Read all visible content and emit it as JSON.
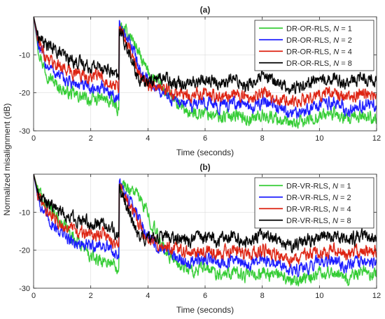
{
  "shared_ylabel": "Normalized misalignment (dB)",
  "chart_data": [
    {
      "type": "line",
      "title": "(a)",
      "xlabel": "Time (seconds)",
      "ylabel": "Normalized misalignment (dB)",
      "xlim": [
        0,
        12
      ],
      "ylim": [
        -30,
        0
      ],
      "xticks": [
        0,
        2,
        4,
        6,
        8,
        10,
        12
      ],
      "yticks": [
        -30,
        -20,
        -10
      ],
      "grid": true,
      "legend_position": "top-right",
      "series": [
        {
          "name": "DR-OR-RLS, N = 1",
          "label_prefix": "DR-OR-RLS, ",
          "label_var": "N",
          "label_value": " = 1",
          "color": "#33cc33",
          "x": [
            0,
            0.15,
            0.4,
            0.8,
            1.2,
            1.6,
            2.0,
            2.4,
            2.8,
            2.98,
            3.0,
            3.2,
            3.4,
            3.6,
            3.8,
            4.0,
            4.5,
            5.0,
            5.5,
            6.0,
            6.5,
            7.0,
            7.5,
            8.0,
            8.5,
            9.0,
            9.5,
            10.0,
            10.5,
            11.0,
            11.5,
            12.0
          ],
          "y": [
            0,
            -8,
            -14,
            -18,
            -20,
            -21,
            -22,
            -21.5,
            -23,
            -24.5,
            -3,
            -4,
            -5,
            -8,
            -12,
            -14.5,
            -19,
            -23,
            -25.5,
            -25,
            -26.5,
            -25.5,
            -27,
            -26,
            -26.5,
            -28.5,
            -27.5,
            -26,
            -25.5,
            -27.5,
            -26,
            -26.5
          ]
        },
        {
          "name": "DR-OR-RLS, N = 2",
          "label_prefix": "DR-OR-RLS, ",
          "label_var": "N",
          "label_value": " = 2",
          "color": "#1a1aff",
          "x": [
            0,
            0.15,
            0.4,
            0.8,
            1.2,
            1.6,
            2.0,
            2.4,
            2.8,
            2.98,
            3.0,
            3.2,
            3.4,
            3.6,
            3.8,
            4.0,
            4.5,
            5.0,
            5.5,
            6.0,
            6.5,
            7.0,
            7.5,
            8.0,
            8.5,
            9.0,
            9.5,
            10.0,
            10.5,
            11.0,
            11.5,
            12.0
          ],
          "y": [
            0,
            -7,
            -12,
            -15,
            -17,
            -18,
            -19,
            -18.5,
            -20.5,
            -22,
            -3,
            -5,
            -7,
            -11,
            -15,
            -17,
            -20,
            -22,
            -23,
            -22,
            -23.5,
            -22.5,
            -24,
            -22.5,
            -23.5,
            -25.5,
            -24.5,
            -23,
            -22.5,
            -24.5,
            -23,
            -23.5
          ]
        },
        {
          "name": "DR-OR-RLS, N = 4",
          "label_prefix": "DR-OR-RLS, ",
          "label_var": "N",
          "label_value": " = 4",
          "color": "#dd2211",
          "x": [
            0,
            0.15,
            0.4,
            0.8,
            1.2,
            1.6,
            2.0,
            2.4,
            2.8,
            2.98,
            3.0,
            3.2,
            3.4,
            3.6,
            3.8,
            4.0,
            4.5,
            5.0,
            5.5,
            6.0,
            6.5,
            7.0,
            7.5,
            8.0,
            8.5,
            9.0,
            9.5,
            10.0,
            10.5,
            11.0,
            11.5,
            12.0
          ],
          "y": [
            0,
            -6,
            -10,
            -12.5,
            -14,
            -15,
            -16,
            -15.5,
            -17.5,
            -19,
            -3,
            -6,
            -9,
            -13,
            -17,
            -18,
            -19,
            -20,
            -21,
            -20,
            -21,
            -20,
            -21.5,
            -20,
            -21,
            -23,
            -21.5,
            -20.5,
            -20,
            -21.5,
            -20,
            -20.5
          ]
        },
        {
          "name": "DR-OR-RLS, N = 8",
          "label_prefix": "DR-OR-RLS, ",
          "label_var": "N",
          "label_value": " = 8",
          "color": "#000000",
          "x": [
            0,
            0.15,
            0.4,
            0.8,
            1.2,
            1.6,
            2.0,
            2.4,
            2.8,
            2.98,
            3.0,
            3.2,
            3.4,
            3.6,
            3.8,
            4.0,
            4.5,
            5.0,
            5.5,
            6.0,
            6.5,
            7.0,
            7.5,
            8.0,
            8.5,
            9.0,
            9.5,
            10.0,
            10.5,
            11.0,
            11.5,
            12.0
          ],
          "y": [
            0,
            -5,
            -7,
            -9,
            -11,
            -12,
            -13,
            -13,
            -15,
            -16.5,
            -3,
            -7,
            -11,
            -15,
            -17.5,
            -17,
            -16,
            -17,
            -17.5,
            -16.5,
            -17.5,
            -16.5,
            -18,
            -16,
            -17,
            -19,
            -17.5,
            -16.5,
            -16,
            -17.5,
            -16,
            -16.5
          ]
        }
      ]
    },
    {
      "type": "line",
      "title": "(b)",
      "xlabel": "Time (seconds)",
      "ylabel": "Normalized misalignment (dB)",
      "xlim": [
        0,
        12
      ],
      "ylim": [
        -30,
        0
      ],
      "xticks": [
        0,
        2,
        4,
        6,
        8,
        10,
        12
      ],
      "yticks": [
        -30,
        -20,
        -10
      ],
      "grid": true,
      "legend_position": "top-right",
      "series": [
        {
          "name": "DR-VR-RLS, N = 1",
          "label_prefix": "DR-VR-RLS, ",
          "label_var": "N",
          "label_value": " = 1",
          "color": "#33cc33",
          "x": [
            0,
            0.15,
            0.4,
            0.8,
            1.2,
            1.6,
            2.0,
            2.4,
            2.8,
            2.98,
            3.0,
            3.3,
            3.6,
            3.9,
            4.2,
            4.5,
            5.0,
            5.5,
            6.0,
            6.5,
            7.0,
            7.5,
            8.0,
            8.5,
            9.0,
            9.5,
            10.0,
            10.5,
            11.0,
            11.5,
            12.0
          ],
          "y": [
            0,
            -4,
            -8,
            -11,
            -15,
            -18,
            -22,
            -22.5,
            -23.5,
            -24.5,
            -3,
            -3.5,
            -5,
            -9,
            -14,
            -19,
            -23.5,
            -25.5,
            -25,
            -26,
            -25.5,
            -27,
            -26,
            -26.5,
            -28.5,
            -27.5,
            -26,
            -25.5,
            -27.5,
            -26,
            -26.5
          ]
        },
        {
          "name": "DR-VR-RLS, N = 2",
          "label_prefix": "DR-VR-RLS, ",
          "label_var": "N",
          "label_value": " = 2",
          "color": "#1a1aff",
          "x": [
            0,
            0.15,
            0.4,
            0.8,
            1.2,
            1.6,
            2.0,
            2.4,
            2.8,
            2.98,
            3.0,
            3.3,
            3.6,
            3.9,
            4.2,
            4.5,
            5.0,
            5.5,
            6.0,
            6.5,
            7.0,
            7.5,
            8.0,
            8.5,
            9.0,
            9.5,
            10.0,
            10.5,
            11.0,
            11.5,
            12.0
          ],
          "y": [
            0,
            -6,
            -11,
            -14,
            -17,
            -18.5,
            -19,
            -18.5,
            -20.5,
            -22,
            -3,
            -6,
            -10,
            -15,
            -18,
            -20,
            -22,
            -23,
            -22,
            -23.5,
            -22.5,
            -24,
            -22.5,
            -23.5,
            -25.5,
            -24.5,
            -23,
            -22.5,
            -24.5,
            -23,
            -23.5
          ]
        },
        {
          "name": "DR-VR-RLS, N = 4",
          "label_prefix": "DR-VR-RLS, ",
          "label_var": "N",
          "label_value": " = 4",
          "color": "#dd2211",
          "x": [
            0,
            0.15,
            0.4,
            0.8,
            1.2,
            1.6,
            2.0,
            2.4,
            2.8,
            2.98,
            3.0,
            3.3,
            3.6,
            3.9,
            4.2,
            4.5,
            5.0,
            5.5,
            6.0,
            6.5,
            7.0,
            7.5,
            8.0,
            8.5,
            9.0,
            9.5,
            10.0,
            10.5,
            11.0,
            11.5,
            12.0
          ],
          "y": [
            0,
            -5,
            -9,
            -12,
            -14,
            -15.5,
            -16,
            -15.5,
            -17.5,
            -19,
            -3,
            -7,
            -12,
            -16.5,
            -18,
            -19,
            -20,
            -21,
            -20,
            -21,
            -20,
            -21.5,
            -20,
            -21,
            -23,
            -21.5,
            -20.5,
            -20,
            -21.5,
            -20,
            -20.5
          ]
        },
        {
          "name": "DR-VR-RLS, N = 8",
          "label_prefix": "DR-VR-RLS, ",
          "label_var": "N",
          "label_value": " = 8",
          "color": "#000000",
          "x": [
            0,
            0.15,
            0.4,
            0.8,
            1.2,
            1.6,
            2.0,
            2.4,
            2.8,
            2.98,
            3.0,
            3.3,
            3.6,
            3.9,
            4.2,
            4.5,
            5.0,
            5.5,
            6.0,
            6.5,
            7.0,
            7.5,
            8.0,
            8.5,
            9.0,
            9.5,
            10.0,
            10.5,
            11.0,
            11.5,
            12.0
          ],
          "y": [
            0,
            -5,
            -7,
            -9,
            -11,
            -12,
            -13,
            -13,
            -15,
            -16.5,
            -3,
            -9,
            -15,
            -17.5,
            -17,
            -16.5,
            -17,
            -17.5,
            -16.5,
            -17.5,
            -16.5,
            -18,
            -16,
            -17,
            -19,
            -17.5,
            -16.5,
            -16,
            -17.5,
            -16,
            -16.5
          ]
        }
      ]
    }
  ]
}
